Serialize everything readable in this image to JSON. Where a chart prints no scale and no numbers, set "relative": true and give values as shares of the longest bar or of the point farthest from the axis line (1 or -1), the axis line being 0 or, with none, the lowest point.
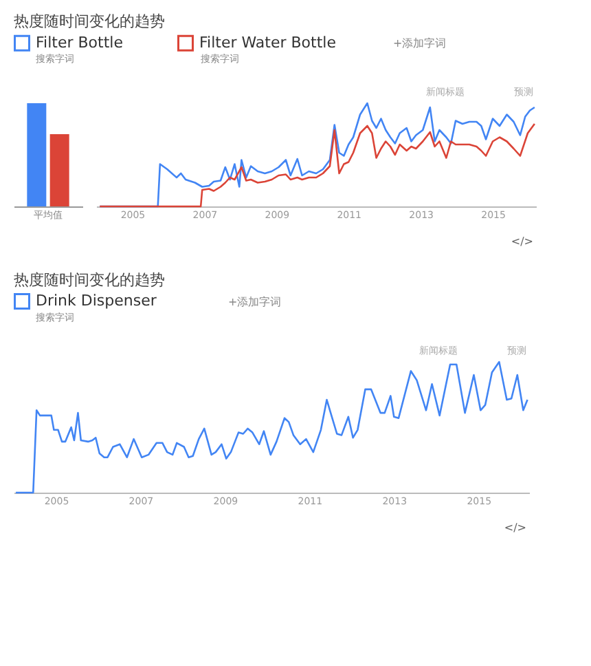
{
  "chart_data": [
    {
      "type": "bar",
      "title": "热度随时间变化的趋势",
      "categories": [
        "平均值"
      ],
      "relative": true,
      "series": [
        {
          "color": "#4285f4",
          "values": [
            1
          ]
        },
        {
          "color": "#db4437",
          "values": [
            0.7
          ]
        }
      ]
    },
    {
      "type": "line",
      "relative": true,
      "legend": "top left",
      "xlim": [
        2004,
        2016.2
      ],
      "xticks": [
        2005,
        2007,
        2009,
        2011,
        2013,
        2015
      ],
      "annotations": [
        "搜索字词",
        "搜索字词",
        "+添加字词",
        "新闻标题",
        "预测",
        "</>"
      ],
      "series": [
        {
          "name": "Filter Bottle",
          "color": "#4285f4",
          "x": [
            2004.1,
            2005.71,
            2005.77,
            2005.97,
            2006.23,
            2006.35,
            2006.48,
            2006.74,
            2006.94,
            2007.13,
            2007.26,
            2007.45,
            2007.58,
            2007.71,
            2007.84,
            2007.97,
            2008.03,
            2008.16,
            2008.29,
            2008.48,
            2008.68,
            2008.87,
            2009.06,
            2009.26,
            2009.39,
            2009.58,
            2009.71,
            2009.9,
            2010.1,
            2010.29,
            2010.48,
            2010.61,
            2010.74,
            2010.87,
            2011.0,
            2011.13,
            2011.32,
            2011.52,
            2011.65,
            2011.77,
            2011.9,
            2012.03,
            2012.16,
            2012.29,
            2012.42,
            2012.61,
            2012.74,
            2012.87,
            2013.06,
            2013.26,
            2013.39,
            2013.52,
            2013.71,
            2013.84,
            2013.97,
            2014.16,
            2014.35,
            2014.55,
            2014.68,
            2014.81,
            2015.0,
            2015.19,
            2015.39,
            2015.58,
            2015.76,
            2015.9,
            2016.03,
            2016.16
          ],
          "values": [
            0,
            0,
            0.41,
            0.36,
            0.28,
            0.32,
            0.26,
            0.23,
            0.19,
            0.2,
            0.24,
            0.25,
            0.38,
            0.26,
            0.41,
            0.19,
            0.45,
            0.28,
            0.39,
            0.34,
            0.32,
            0.34,
            0.38,
            0.45,
            0.3,
            0.46,
            0.3,
            0.34,
            0.32,
            0.36,
            0.45,
            0.79,
            0.52,
            0.49,
            0.6,
            0.67,
            0.89,
            1.0,
            0.83,
            0.76,
            0.85,
            0.74,
            0.67,
            0.61,
            0.71,
            0.76,
            0.63,
            0.69,
            0.74,
            0.96,
            0.63,
            0.74,
            0.67,
            0.61,
            0.83,
            0.8,
            0.82,
            0.82,
            0.78,
            0.65,
            0.85,
            0.78,
            0.89,
            0.82,
            0.69,
            0.87,
            0.93,
            0.96
          ]
        },
        {
          "name": "Filter Water Bottle",
          "color": "#db4437",
          "x": [
            2004.1,
            2006.9,
            2006.94,
            2007.13,
            2007.26,
            2007.45,
            2007.58,
            2007.71,
            2007.84,
            2008.03,
            2008.16,
            2008.29,
            2008.48,
            2008.68,
            2008.87,
            2009.06,
            2009.26,
            2009.39,
            2009.58,
            2009.71,
            2009.9,
            2010.1,
            2010.29,
            2010.48,
            2010.61,
            2010.74,
            2010.87,
            2011.0,
            2011.13,
            2011.32,
            2011.52,
            2011.65,
            2011.77,
            2011.9,
            2012.03,
            2012.16,
            2012.29,
            2012.42,
            2012.61,
            2012.74,
            2012.87,
            2013.06,
            2013.26,
            2013.39,
            2013.52,
            2013.71,
            2013.84,
            2013.97,
            2014.16,
            2014.35,
            2014.55,
            2014.68,
            2014.81,
            2015.0,
            2015.19,
            2015.39,
            2015.58,
            2015.76,
            2015.97,
            2016.16
          ],
          "values": [
            0,
            0,
            0.16,
            0.17,
            0.15,
            0.19,
            0.23,
            0.28,
            0.26,
            0.38,
            0.25,
            0.26,
            0.23,
            0.24,
            0.26,
            0.3,
            0.31,
            0.26,
            0.28,
            0.26,
            0.28,
            0.28,
            0.32,
            0.39,
            0.74,
            0.32,
            0.41,
            0.43,
            0.52,
            0.71,
            0.78,
            0.71,
            0.47,
            0.56,
            0.63,
            0.58,
            0.5,
            0.6,
            0.54,
            0.58,
            0.56,
            0.63,
            0.72,
            0.58,
            0.63,
            0.47,
            0.63,
            0.6,
            0.6,
            0.6,
            0.58,
            0.54,
            0.49,
            0.63,
            0.67,
            0.63,
            0.56,
            0.49,
            0.71,
            0.8
          ]
        }
      ]
    },
    {
      "type": "line",
      "title": "热度随时间变化的趋势",
      "relative": true,
      "legend": "top left",
      "xlim": [
        2004,
        2016.2
      ],
      "xticks": [
        2005,
        2007,
        2009,
        2011,
        2013,
        2015
      ],
      "series": [
        {
          "name": "Drink Dispenser",
          "color": "#4285f4",
          "x": [
            2004.05,
            2004.46,
            2004.54,
            2004.62,
            2004.84,
            2004.89,
            2004.95,
            2005.05,
            2005.14,
            2005.22,
            2005.36,
            2005.43,
            2005.52,
            2005.59,
            2005.76,
            2005.86,
            2005.94,
            2006.03,
            2006.14,
            2006.22,
            2006.35,
            2006.51,
            2006.68,
            2006.84,
            2007.03,
            2007.19,
            2007.38,
            2007.52,
            2007.63,
            2007.76,
            2007.86,
            2008.03,
            2008.14,
            2008.24,
            2008.38,
            2008.51,
            2008.68,
            2008.78,
            2008.92,
            2009.03,
            2009.14,
            2009.32,
            2009.43,
            2009.54,
            2009.65,
            2009.81,
            2009.92,
            2010.08,
            2010.22,
            2010.41,
            2010.51,
            2010.62,
            2010.78,
            2010.92,
            2011.09,
            2011.27,
            2011.41,
            2011.52,
            2011.65,
            2011.76,
            2011.92,
            2012.03,
            2012.14,
            2012.32,
            2012.46,
            2012.68,
            2012.78,
            2012.92,
            2013.0,
            2013.11,
            2013.4,
            2013.54,
            2013.76,
            2013.9,
            2014.08,
            2014.33,
            2014.48,
            2014.68,
            2014.89,
            2015.05,
            2015.16,
            2015.32,
            2015.49,
            2015.67,
            2015.78,
            2015.92,
            2016.06,
            2016.16
          ],
          "values": [
            0,
            0,
            0.63,
            0.59,
            0.59,
            0.59,
            0.48,
            0.48,
            0.39,
            0.39,
            0.5,
            0.4,
            0.61,
            0.4,
            0.39,
            0.4,
            0.42,
            0.3,
            0.27,
            0.27,
            0.35,
            0.37,
            0.27,
            0.41,
            0.27,
            0.29,
            0.38,
            0.38,
            0.31,
            0.29,
            0.38,
            0.35,
            0.27,
            0.28,
            0.41,
            0.49,
            0.29,
            0.31,
            0.37,
            0.26,
            0.31,
            0.46,
            0.45,
            0.49,
            0.46,
            0.37,
            0.47,
            0.29,
            0.39,
            0.57,
            0.54,
            0.44,
            0.37,
            0.41,
            0.31,
            0.48,
            0.71,
            0.59,
            0.45,
            0.44,
            0.58,
            0.42,
            0.48,
            0.79,
            0.79,
            0.61,
            0.61,
            0.74,
            0.58,
            0.57,
            0.93,
            0.86,
            0.63,
            0.83,
            0.59,
            0.98,
            0.98,
            0.61,
            0.9,
            0.63,
            0.67,
            0.92,
            1.0,
            0.71,
            0.72,
            0.9,
            0.63,
            0.71
          ]
        }
      ],
      "annotations": [
        "搜索字词",
        "+添加字词",
        "新闻标题",
        "预测",
        "</>"
      ]
    }
  ]
}
